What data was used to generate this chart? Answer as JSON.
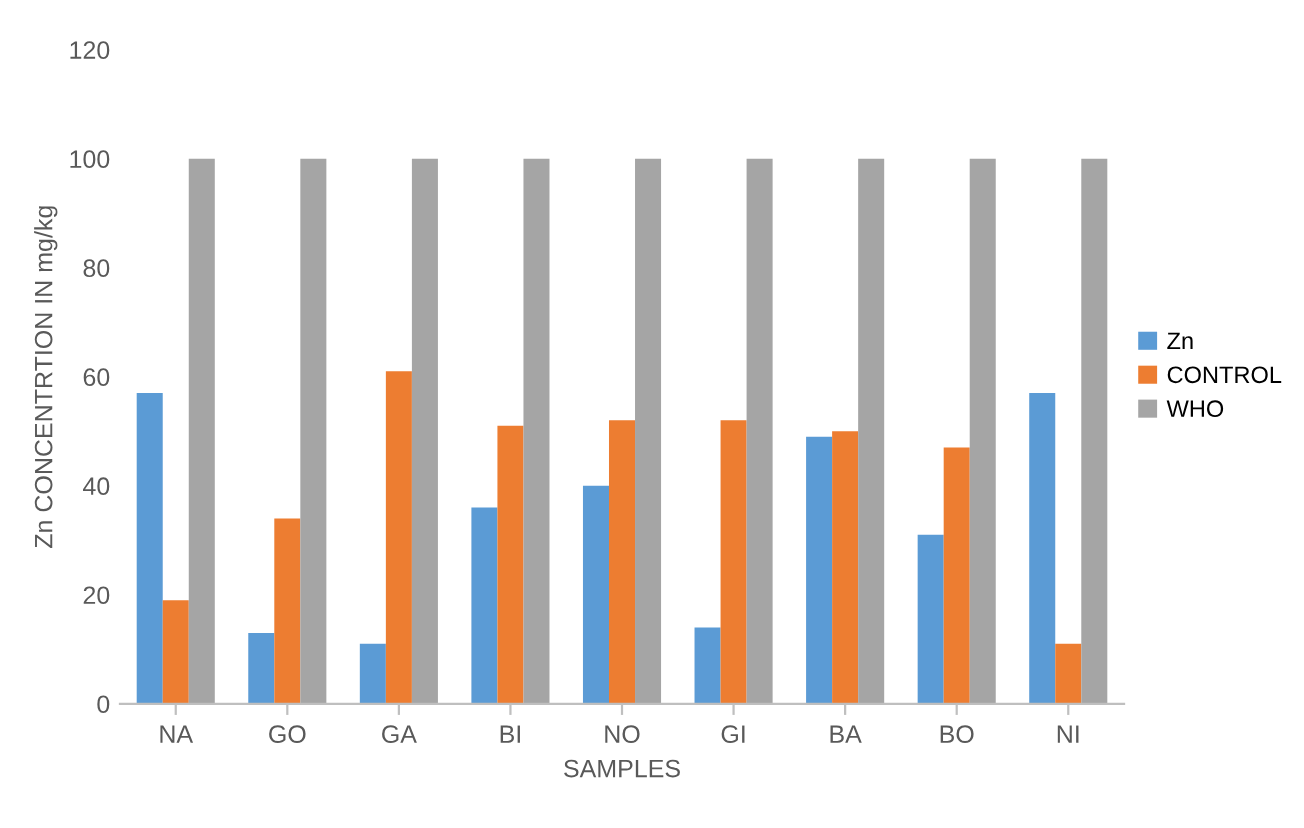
{
  "chart_data": {
    "type": "bar",
    "xlabel": "SAMPLES",
    "ylabel": "Zn CONCENTRTION IN mg/kg",
    "categories": [
      "NA",
      "GO",
      "GA",
      "BI",
      "NO",
      "GI",
      "BA",
      "BO",
      "NI"
    ],
    "series": [
      {
        "name": "Zn",
        "color": "#5b9bd5",
        "values": [
          57,
          13,
          11,
          36,
          40,
          14,
          49,
          31,
          57
        ]
      },
      {
        "name": "CONTROL",
        "color": "#ed7d31",
        "values": [
          19,
          34,
          61,
          51,
          52,
          52,
          50,
          47,
          11
        ]
      },
      {
        "name": "WHO",
        "color": "#a5a5a5",
        "values": [
          100,
          100,
          100,
          100,
          100,
          100,
          100,
          100,
          100
        ]
      }
    ],
    "ylim": [
      0,
      120
    ],
    "yticks": [
      0,
      20,
      40,
      60,
      80,
      100,
      120
    ],
    "grid": false,
    "legend": "right"
  }
}
